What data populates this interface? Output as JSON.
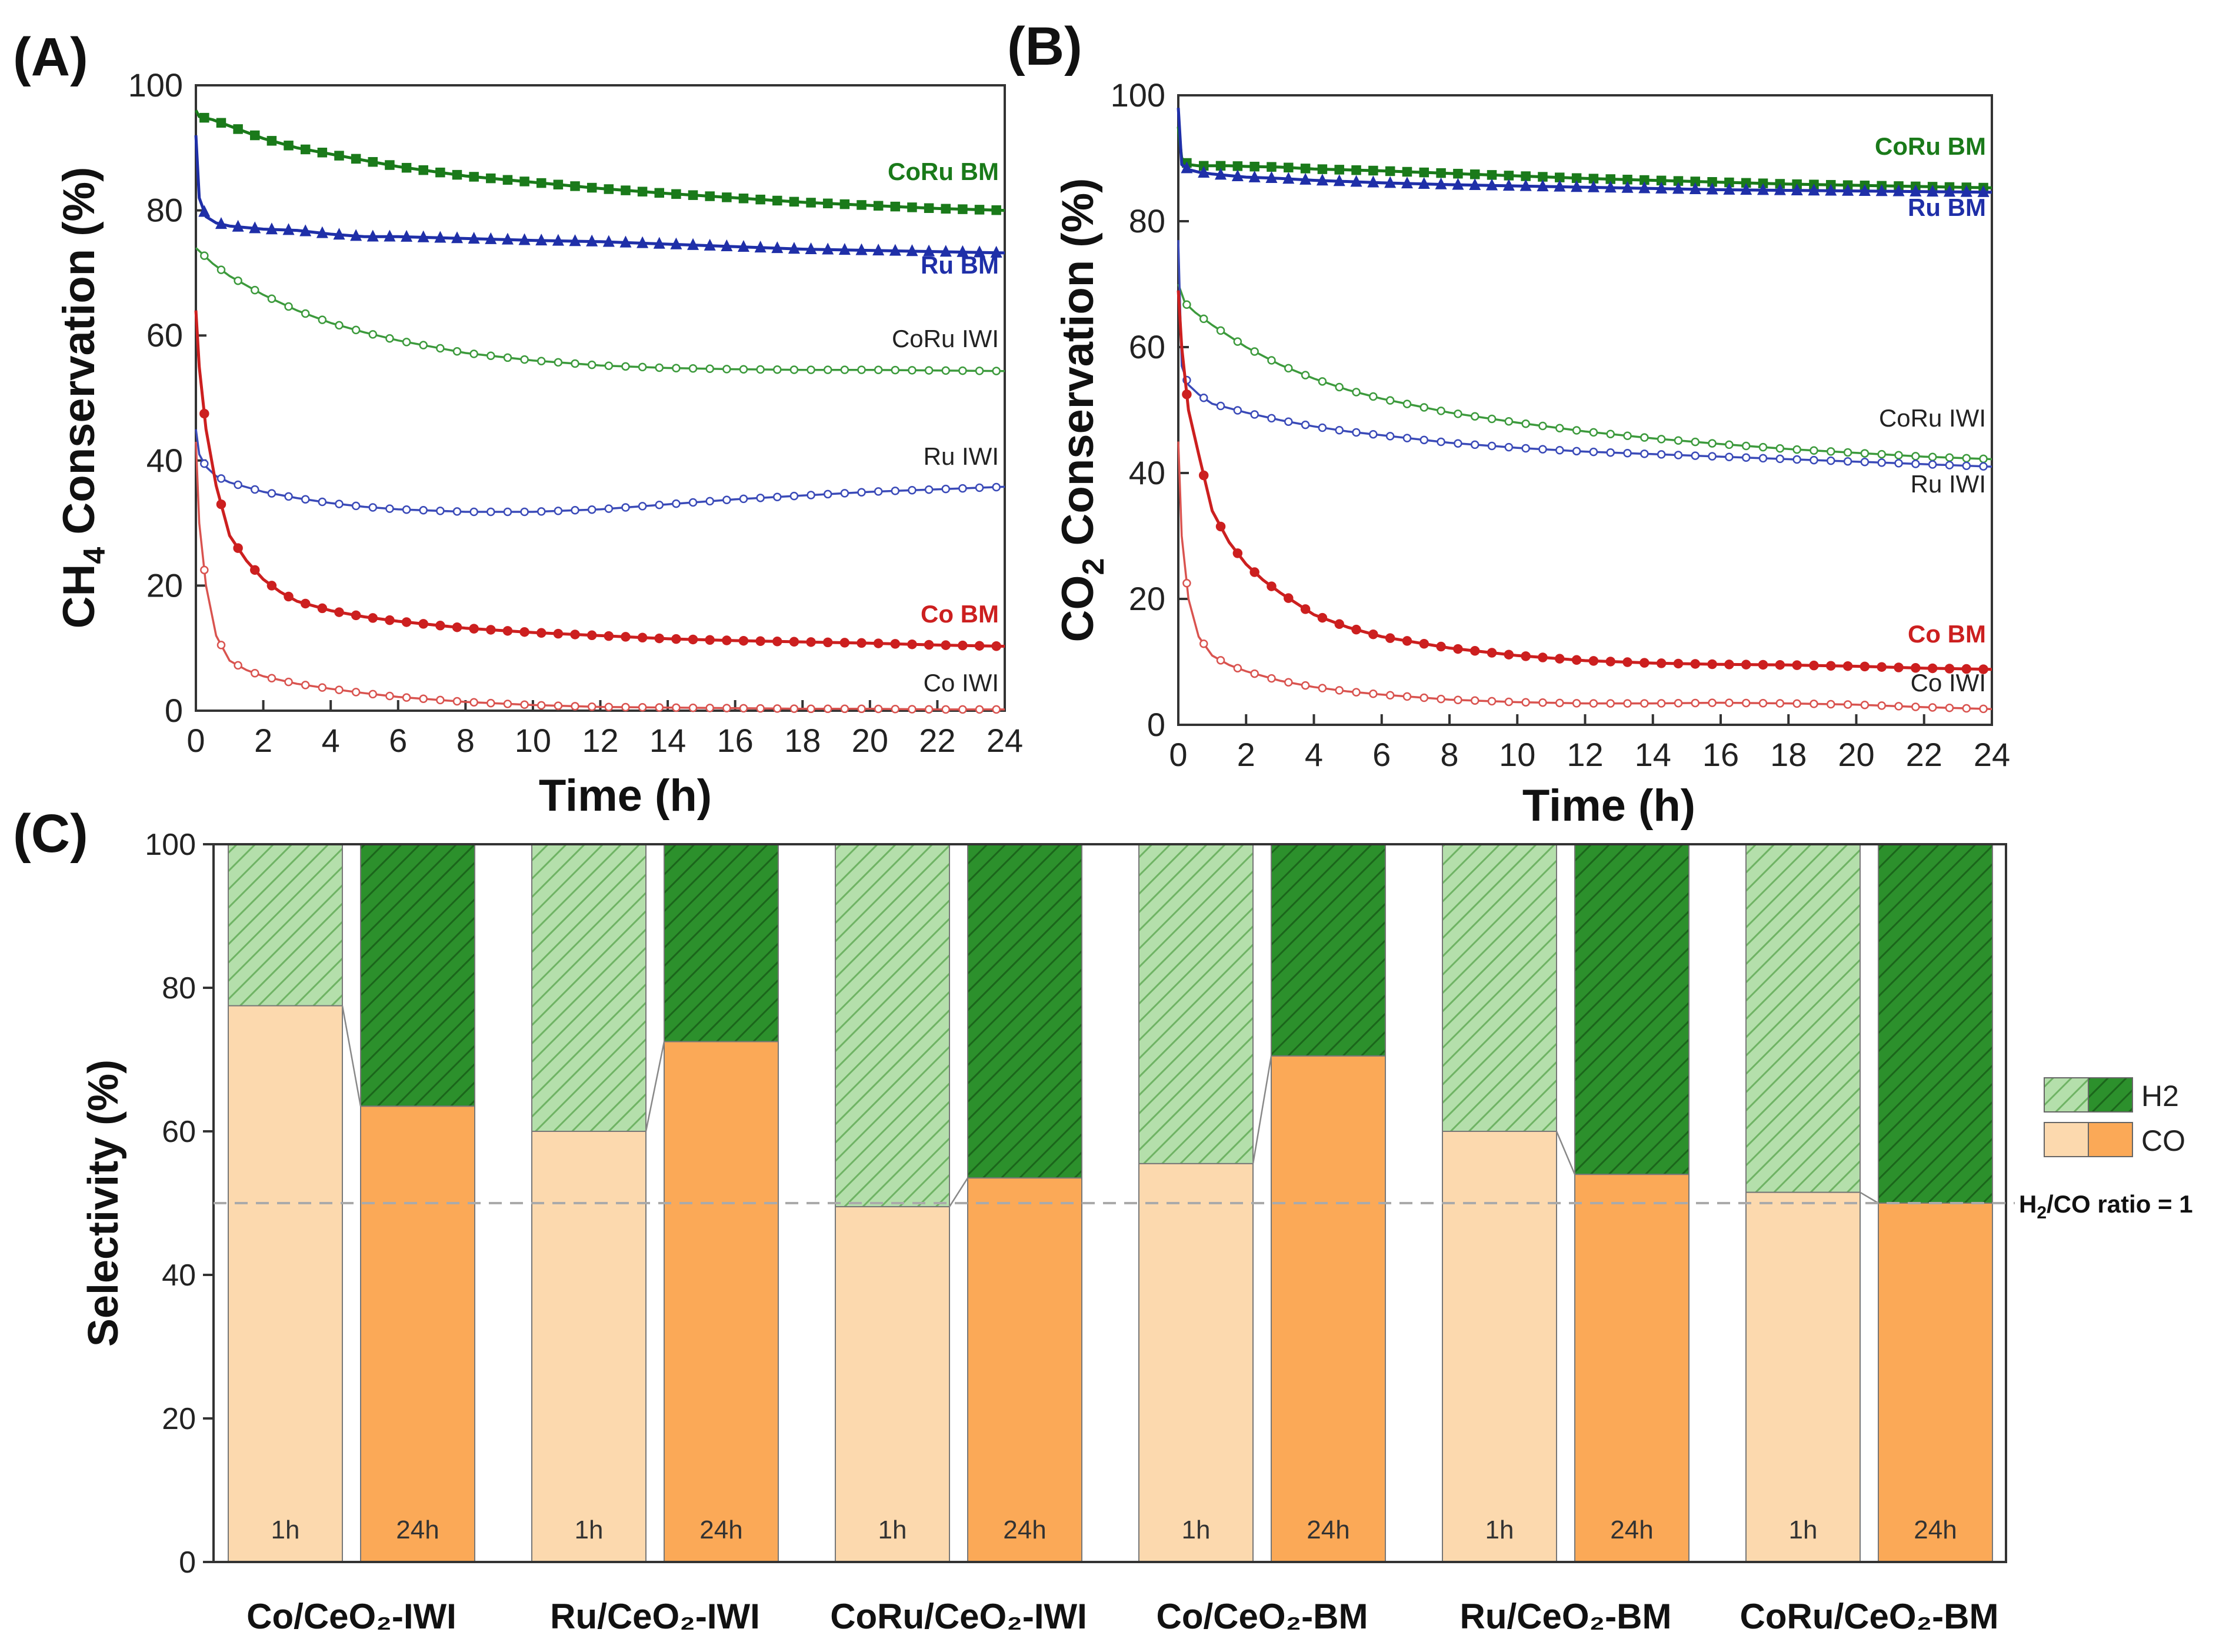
{
  "chart_data": [
    {
      "panel": "(A)",
      "type": "line",
      "xlabel": "Time (h)",
      "ylabel": "CH4 Conservation (%)",
      "ylabel_main": "CH",
      "ylabel_sub": "4",
      "ylabel_rest": " Conservation (%)",
      "xlim": [
        0,
        24
      ],
      "ylim": [
        0,
        100
      ],
      "xticks": [
        "0",
        "2",
        "4",
        "6",
        "8",
        "10",
        "12",
        "14",
        "16",
        "18",
        "20",
        "22",
        "24"
      ],
      "yticks": [
        "0",
        "20",
        "40",
        "60",
        "80",
        "100"
      ],
      "series": [
        {
          "name": "CoRu BM",
          "color": "#1a7a1a",
          "filled": true,
          "marker": "square",
          "bold": true,
          "x": [
            0,
            0.1,
            0.5,
            1,
            2,
            3,
            4,
            5,
            6,
            8,
            10,
            12,
            14,
            16,
            18,
            20,
            22,
            24
          ],
          "y": [
            96,
            95,
            94.5,
            93.5,
            91.5,
            90,
            89,
            88,
            87,
            85.5,
            84.5,
            83.5,
            82.7,
            82,
            81.3,
            80.8,
            80.3,
            80
          ]
        },
        {
          "name": "Ru BM",
          "color": "#1f2fa8",
          "filled": true,
          "marker": "triangle",
          "bold": true,
          "x": [
            0,
            0.1,
            0.3,
            0.6,
            1,
            2,
            3,
            4,
            5,
            6,
            8,
            10,
            12,
            14,
            16,
            18,
            20,
            22,
            24
          ],
          "y": [
            92,
            82,
            79,
            78,
            77.5,
            77,
            76.8,
            76.2,
            75.8,
            75.8,
            75.5,
            75.2,
            75,
            74.6,
            74.2,
            73.8,
            73.6,
            73.4,
            73.2
          ]
        },
        {
          "name": "CoRu IWI",
          "color": "#3c9a3c",
          "filled": false,
          "marker": "circle",
          "bold": false,
          "x": [
            0,
            0.2,
            0.5,
            1,
            2,
            3,
            4,
            5,
            6,
            8,
            10,
            12,
            14,
            16,
            18,
            20,
            22,
            24
          ],
          "y": [
            74,
            73,
            71.5,
            69.5,
            66.5,
            64,
            62,
            60.5,
            59.2,
            57.2,
            56,
            55.2,
            54.8,
            54.6,
            54.5,
            54.5,
            54.4,
            54.3
          ]
        },
        {
          "name": "Ru IWI",
          "color": "#3a4ab8",
          "filled": false,
          "marker": "circle",
          "bold": false,
          "x": [
            0,
            0.1,
            0.3,
            0.6,
            1,
            2,
            3,
            4,
            5,
            6,
            8,
            10,
            12,
            14,
            16,
            18,
            20,
            22,
            24
          ],
          "y": [
            45,
            41,
            39,
            37.5,
            36.5,
            35,
            34,
            33.2,
            32.6,
            32.2,
            31.8,
            31.8,
            32.2,
            33,
            33.8,
            34.4,
            35,
            35.4,
            35.8
          ]
        },
        {
          "name": "Co BM",
          "color": "#cc1f1f",
          "filled": true,
          "marker": "circle",
          "bold": true,
          "x": [
            0,
            0.1,
            0.3,
            0.6,
            1,
            1.5,
            2,
            2.5,
            3,
            4,
            5,
            6,
            8,
            10,
            12,
            14,
            16,
            18,
            20,
            22,
            24
          ],
          "y": [
            64,
            55,
            45,
            36,
            28,
            24,
            21,
            19,
            17.5,
            16,
            15,
            14.3,
            13.2,
            12.5,
            12,
            11.5,
            11.2,
            11,
            10.8,
            10.5,
            10.3
          ]
        },
        {
          "name": "Co IWI",
          "color": "#d9534f",
          "filled": false,
          "marker": "circle",
          "bold": false,
          "x": [
            0,
            0.1,
            0.3,
            0.6,
            1,
            1.5,
            2,
            3,
            4,
            5,
            6,
            8,
            10,
            12,
            14,
            16,
            18,
            20,
            22,
            24
          ],
          "y": [
            43,
            30,
            20,
            12,
            8,
            6.5,
            5.5,
            4.3,
            3.5,
            2.8,
            2.2,
            1.4,
            0.9,
            0.6,
            0.5,
            0.4,
            0.3,
            0.3,
            0.2,
            0.2
          ]
        }
      ]
    },
    {
      "panel": "(B)",
      "type": "line",
      "xlabel": "Time (h)",
      "ylabel": "CO2 Conservation (%)",
      "ylabel_main": "CO",
      "ylabel_sub": "2",
      "ylabel_rest": " Conservation (%)",
      "xlim": [
        0,
        24
      ],
      "ylim": [
        0,
        100
      ],
      "xticks": [
        "0",
        "2",
        "4",
        "6",
        "8",
        "10",
        "12",
        "14",
        "16",
        "18",
        "20",
        "22",
        "24"
      ],
      "yticks": [
        "0",
        "20",
        "40",
        "60",
        "80",
        "100"
      ],
      "series": [
        {
          "name": "CoRu BM",
          "color": "#1a7a1a",
          "filled": true,
          "marker": "square",
          "bold": true,
          "x": [
            0,
            0.1,
            0.3,
            0.6,
            1,
            1.5,
            2,
            3,
            4,
            6,
            8,
            10,
            12,
            14,
            16,
            18,
            20,
            22,
            24
          ],
          "y": [
            95,
            90,
            89,
            88.8,
            88.8,
            88.8,
            88.7,
            88.6,
            88.3,
            88,
            87.6,
            87.2,
            86.8,
            86.5,
            86.2,
            85.9,
            85.7,
            85.5,
            85.3
          ]
        },
        {
          "name": "Ru BM",
          "color": "#1f2fa8",
          "filled": true,
          "marker": "triangle",
          "bold": true,
          "x": [
            0,
            0.1,
            0.3,
            0.6,
            1,
            2,
            3,
            4,
            6,
            8,
            10,
            12,
            14,
            16,
            18,
            20,
            22,
            24
          ],
          "y": [
            98,
            89,
            88.2,
            87.8,
            87.5,
            87,
            86.8,
            86.5,
            86.1,
            85.8,
            85.6,
            85.4,
            85.2,
            85,
            84.9,
            84.8,
            84.7,
            84.6
          ]
        },
        {
          "name": "CoRu IWI",
          "color": "#3c9a3c",
          "filled": false,
          "marker": "circle",
          "bold": false,
          "x": [
            0,
            0.2,
            0.5,
            1,
            2,
            3,
            4,
            5,
            6,
            8,
            10,
            12,
            14,
            16,
            18,
            20,
            22,
            24
          ],
          "y": [
            70,
            67,
            65.5,
            63.5,
            60,
            57.2,
            55,
            53.2,
            51.8,
            49.6,
            48,
            46.6,
            45.5,
            44.6,
            43.8,
            43.2,
            42.6,
            42.2
          ]
        },
        {
          "name": "Ru IWI",
          "color": "#3a4ab8",
          "filled": false,
          "marker": "circle",
          "bold": false,
          "x": [
            0,
            0.1,
            0.3,
            0.6,
            1,
            2,
            3,
            4,
            5,
            6,
            8,
            10,
            12,
            14,
            16,
            18,
            20,
            22,
            24
          ],
          "y": [
            77,
            57,
            54,
            52.5,
            51,
            49.6,
            48.4,
            47.4,
            46.6,
            46,
            44.8,
            44,
            43.4,
            43,
            42.6,
            42.2,
            41.8,
            41.4,
            41
          ]
        },
        {
          "name": "Co BM",
          "color": "#cc1f1f",
          "filled": true,
          "marker": "circle",
          "bold": true,
          "x": [
            0,
            0.1,
            0.3,
            0.6,
            1,
            1.5,
            2,
            2.5,
            3,
            4,
            5,
            6,
            8,
            10,
            12,
            14,
            16,
            18,
            20,
            22,
            24
          ],
          "y": [
            69,
            60,
            50,
            43,
            34,
            29,
            25.5,
            23,
            21,
            17.5,
            15.5,
            14,
            12.2,
            11,
            10.2,
            9.8,
            9.6,
            9.5,
            9.3,
            9,
            8.8
          ]
        },
        {
          "name": "Co IWI",
          "color": "#d9534f",
          "filled": false,
          "marker": "circle",
          "bold": false,
          "x": [
            0,
            0.1,
            0.3,
            0.6,
            1,
            1.5,
            2,
            3,
            4,
            5,
            6,
            8,
            10,
            12,
            14,
            16,
            18,
            20,
            22,
            24
          ],
          "y": [
            45,
            30,
            20,
            14,
            11,
            9.5,
            8.5,
            7,
            6,
            5.3,
            4.8,
            4,
            3.6,
            3.4,
            3.4,
            3.5,
            3.4,
            3.2,
            2.8,
            2.5
          ]
        }
      ]
    },
    {
      "panel": "(C)",
      "type": "bar",
      "stacked": true,
      "ylabel": "Selectivity (%)",
      "ylim": [
        0,
        100
      ],
      "yticks": [
        "0",
        "20",
        "40",
        "60",
        "80",
        "100"
      ],
      "categories": [
        "Co/CeO₂-IWI",
        "Ru/CeO₂-IWI",
        "CoRu/CeO₂-IWI",
        "Co/CeO₂-BM",
        "Ru/CeO₂-BM",
        "CoRu/CeO₂-BM"
      ],
      "bar_labels": [
        "1h",
        "24h"
      ],
      "series": [
        {
          "name": "CO",
          "values_1h": [
            77.5,
            60,
            49.5,
            55.5,
            60,
            51.5
          ],
          "values_24h": [
            63.5,
            72.5,
            53.5,
            70.5,
            54,
            50
          ]
        },
        {
          "name": "H2",
          "values_1h": [
            22.5,
            40,
            50.5,
            44.5,
            40,
            48.5
          ],
          "values_24h": [
            36.5,
            27.5,
            46.5,
            29.5,
            46,
            50
          ]
        }
      ],
      "legend": [
        "H2",
        "CO"
      ],
      "reference_line": {
        "value": 50,
        "label_main": "H",
        "label_sub1": "2",
        "label_mid": "/CO ratio = 1"
      },
      "colors": {
        "co_1h": "#fcd9ae",
        "co_24h": "#fba957",
        "h2_1h_bg": "#a8d8a0",
        "h2_1h_hatch": "#7cbf72",
        "h2_24h_bg": "#2a8a2a",
        "h2_24h_hatch": "#1f6e1f"
      }
    }
  ]
}
